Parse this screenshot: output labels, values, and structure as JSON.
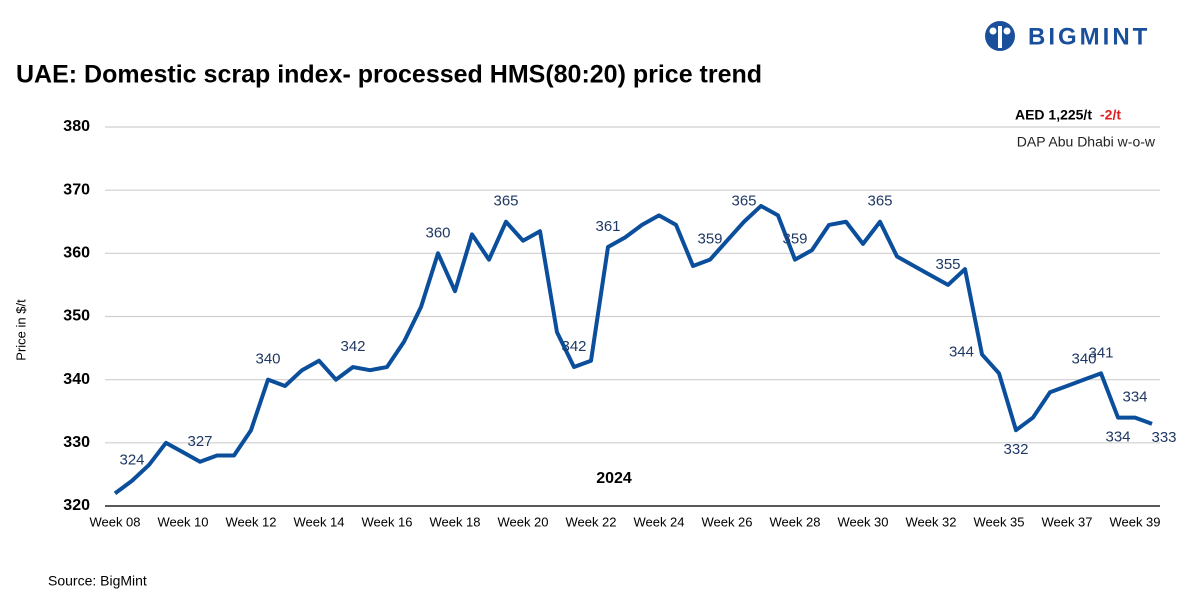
{
  "brand": "BIGMINT",
  "source": "Source: BigMint",
  "chart_data": {
    "type": "line",
    "title": "UAE: Domestic scrap index- processed HMS(80:20) price trend",
    "price_box": {
      "price": "AED 1,225/t",
      "change": "-2/t",
      "basis": "DAP Abu Dhabi w-o-w"
    },
    "y_label": "Price in $/t",
    "annotation": "2024",
    "categories": [
      "Week 08",
      null,
      null,
      null,
      "Week 10",
      null,
      null,
      null,
      "Week 12",
      null,
      null,
      null,
      "Week 14",
      null,
      null,
      null,
      "Week 16",
      null,
      null,
      null,
      "Week 18",
      null,
      null,
      null,
      "Week 20",
      null,
      null,
      null,
      "Week 22",
      null,
      null,
      null,
      "Week 24",
      null,
      null,
      null,
      "Week 26",
      null,
      null,
      null,
      "Week 28",
      null,
      null,
      null,
      "Week 30",
      null,
      null,
      null,
      "Week 32",
      null,
      null,
      null,
      "Week 35",
      null,
      null,
      null,
      "Week 37",
      null,
      null,
      null,
      "Week 39",
      null
    ],
    "series": [
      {
        "name": "Price",
        "color": "#0b4f9c",
        "values": [
          322,
          324,
          326.5,
          330,
          328.5,
          327,
          328,
          328,
          332,
          340,
          339,
          341.5,
          343,
          340,
          342,
          341.5,
          342,
          346,
          351.5,
          360,
          354,
          363,
          359,
          365,
          362,
          363.5,
          347.5,
          342,
          343,
          361,
          362.5,
          364.5,
          366,
          364.5,
          358,
          359,
          362,
          365,
          367.5,
          366,
          359,
          360.5,
          364.5,
          365,
          361.5,
          365,
          359.5,
          358,
          356.5,
          355,
          357.5,
          344,
          341,
          332,
          334,
          338,
          339,
          340,
          341,
          334,
          334,
          333
        ],
        "value_labels": [
          null,
          "324",
          null,
          null,
          null,
          "327",
          null,
          null,
          null,
          "340",
          null,
          null,
          null,
          null,
          "342",
          null,
          null,
          null,
          null,
          "360",
          null,
          null,
          null,
          "365",
          null,
          null,
          null,
          "342",
          null,
          "361",
          null,
          null,
          null,
          null,
          null,
          "359",
          null,
          "365",
          null,
          null,
          "359",
          null,
          null,
          null,
          null,
          "365",
          null,
          null,
          null,
          "355",
          null,
          "344",
          null,
          "332",
          null,
          null,
          null,
          "340",
          "341",
          "334",
          "334",
          "333"
        ]
      }
    ],
    "ylim": [
      320,
      380
    ],
    "yticks": [
      320,
      330,
      340,
      350,
      360,
      370,
      380
    ],
    "grid": true
  }
}
